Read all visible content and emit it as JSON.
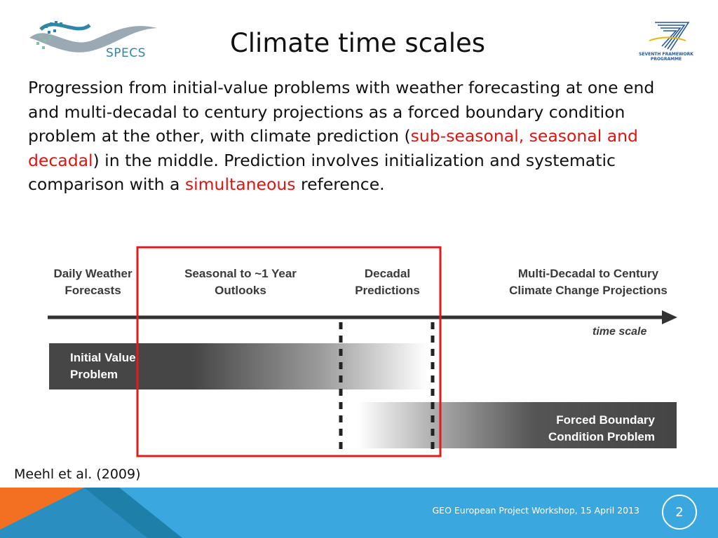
{
  "header": {
    "title": "Climate time scales",
    "logo_left_text": "SPECS",
    "logo_right_text_line1": "SEVENTH FRAMEWORK",
    "logo_right_text_line2": "PROGRAMME",
    "logo_right_icon": "fp7-icon",
    "logo_left_icon": "specs-wave-icon"
  },
  "body": {
    "part1": "Progression from initial-value problems with weather forecasting at one end and multi-decadal to century projections as a forced boundary condition problem at the other, with climate prediction (",
    "highlight1": "sub-seasonal, seasonal and decadal",
    "part2": ") in the middle. Prediction involves initialization and systematic comparison with a ",
    "highlight2": "simultaneous",
    "part3": " reference."
  },
  "diagram": {
    "labels": {
      "daily_1": "Daily Weather",
      "daily_2": "Forecasts",
      "seasonal_1": "Seasonal to ~1 Year",
      "seasonal_2": "Outlooks",
      "decadal_1": "Decadal",
      "decadal_2": "Predictions",
      "multi_1": "Multi-Decadal to Century",
      "multi_2": "Climate Change Projections"
    },
    "axis_label": "time scale",
    "bar_initial_1": "Initial Value",
    "bar_initial_2": "Problem",
    "bar_forced_1": "Forced Boundary",
    "bar_forced_2": "Condition Problem"
  },
  "citation": "Meehl et al. (2009)",
  "footer": {
    "text": "GEO European Project Workshop, 15 April 2013",
    "page_number": "2"
  },
  "colors": {
    "highlight_red": "#e0140f",
    "footer_blue": "#3aa7de",
    "footer_orange": "#f36f21",
    "bar_dark": "#4a4a4a",
    "highlight_box": "#e11b1b"
  }
}
